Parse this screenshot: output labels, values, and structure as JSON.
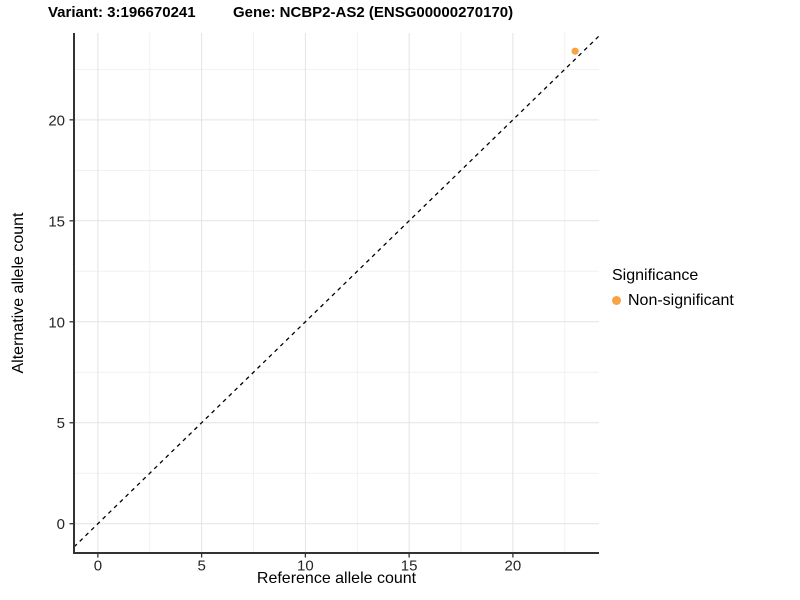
{
  "chart_data": {
    "type": "scatter",
    "titles": {
      "variant": "Variant: 3:196670241",
      "gene": "Gene: NCBP2-AS2 (ENSG00000270170)"
    },
    "xlabel": "Reference allele count",
    "ylabel": "Alternative allele count",
    "xlim": [
      -1.15,
      24.15
    ],
    "ylim": [
      -1.45,
      24.3
    ],
    "x_major_ticks": [
      0,
      5,
      10,
      15,
      20
    ],
    "y_major_ticks": [
      0,
      5,
      10,
      15,
      20
    ],
    "x_minor_ticks": [
      2.5,
      7.5,
      12.5,
      17.5,
      22.5
    ],
    "y_minor_ticks": [
      2.5,
      7.5,
      12.5,
      17.5,
      22.5
    ],
    "grid": true,
    "identity_line": {
      "style": "dashed",
      "color": "#000000",
      "equation": "y = x"
    },
    "series": [
      {
        "name": "Non-significant",
        "color": "#F9A242",
        "points": [
          {
            "x": 23,
            "y": 23.4
          }
        ]
      }
    ],
    "legend": {
      "title": "Significance",
      "position": "right",
      "items": [
        {
          "label": "Non-significant",
          "color": "#F9A242"
        }
      ]
    },
    "colors": {
      "axis_line": "#333333",
      "tick_text": "#262626",
      "grid_major": "#E3E3E3",
      "grid_minor": "#F1F1F1",
      "background": "#FFFFFF"
    }
  }
}
